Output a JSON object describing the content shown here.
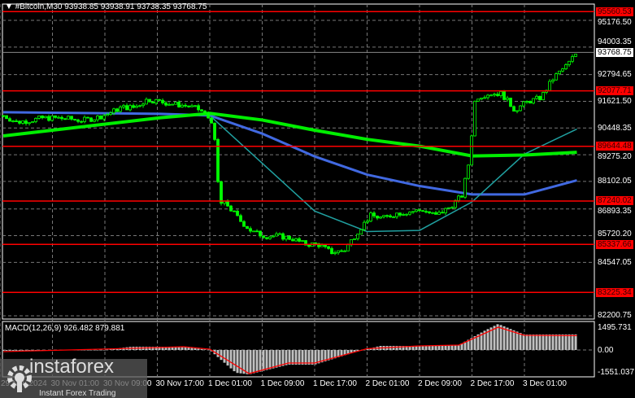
{
  "header": {
    "symbol": "#Bitcoin,M30",
    "ohlc": "93938.85 93938.91 93738.35 93768.75"
  },
  "indicator": {
    "label": "MACD(12,26,9) 926.482 879.881",
    "axis": [
      "1495.731",
      "0.00",
      "-1551.037"
    ]
  },
  "watermark": {
    "brand": "instaforex",
    "tagline": "Instant Forex Trading"
  },
  "colors": {
    "levels": "#ff0000",
    "candle_up": "#00ff00",
    "ma_slow": "#00ee00",
    "ma_mid": "#4169e1",
    "ma_fast": "#20a0a0",
    "macd_hist": "#c0c0c0",
    "macd_signal": "#ff0000"
  },
  "chart_data": {
    "type": "candlestick",
    "timeframe": "M30",
    "price_axis": [
      "95176.50",
      "94003.35",
      "92794.65",
      "91621.50",
      "90448.35",
      "89275.20",
      "88102.05",
      "86893.35",
      "85720.20",
      "84547.05",
      "82200.75"
    ],
    "time_axis": [
      "29 Nov 2024",
      "30 Nov 01:00",
      "30 Nov 09:00",
      "30 Nov 17:00",
      "1 Dec 01:00",
      "1 Dec 09:00",
      "1 Dec 17:00",
      "2 Dec 01:00",
      "2 Dec 09:00",
      "2 Dec 17:00",
      "3 Dec 01:00"
    ],
    "current_price": "93768.75",
    "levels": [
      "95560.53",
      "92077.71",
      "89644.48",
      "87240.02",
      "85337.66",
      "83225.34"
    ],
    "ylim": [
      82200.75,
      95560.53
    ],
    "grid": true,
    "close": [
      [
        "2024-11-29 17:30",
        90994
      ],
      [
        "2024-11-29 19:30",
        90708
      ],
      [
        "2024-11-29 21:30",
        90779
      ],
      [
        "2024-11-29 23:30",
        90886
      ],
      [
        "2024-11-30 01:30",
        90886
      ],
      [
        "2024-11-30 03:30",
        90851
      ],
      [
        "2024-11-30 05:30",
        90779
      ],
      [
        "2024-11-30 07:30",
        90886
      ],
      [
        "2024-11-30 09:30",
        91065
      ],
      [
        "2024-11-30 11:30",
        91351
      ],
      [
        "2024-11-30 13:30",
        91351
      ],
      [
        "2024-11-30 15:30",
        91708
      ],
      [
        "2024-11-30 17:30",
        91601
      ],
      [
        "2024-11-30 19:30",
        91494
      ],
      [
        "2024-11-30 21:30",
        91422
      ],
      [
        "2024-11-30 23:30",
        91244
      ],
      [
        "2024-12-01 01:30",
        90708
      ],
      [
        "2024-12-01 02:30",
        87133
      ],
      [
        "2024-12-01 03:30",
        87133
      ],
      [
        "2024-12-01 05:30",
        86418
      ],
      [
        "2024-12-01 07:30",
        85881
      ],
      [
        "2024-12-01 09:30",
        85703
      ],
      [
        "2024-12-01 11:30",
        85703
      ],
      [
        "2024-12-01 13:30",
        85595
      ],
      [
        "2024-12-01 15:30",
        85345
      ],
      [
        "2024-12-01 17:30",
        85345
      ],
      [
        "2024-12-01 19:30",
        84988
      ],
      [
        "2024-12-01 21:30",
        85059
      ],
      [
        "2024-12-01 23:30",
        85881
      ],
      [
        "2024-12-02 01:30",
        86596
      ],
      [
        "2024-12-02 03:30",
        86489
      ],
      [
        "2024-12-02 05:30",
        86704
      ],
      [
        "2024-12-02 07:30",
        86775
      ],
      [
        "2024-12-02 09:30",
        86847
      ],
      [
        "2024-12-02 11:30",
        86596
      ],
      [
        "2024-12-02 13:30",
        86954
      ],
      [
        "2024-12-02 15:30",
        87490
      ],
      [
        "2024-12-02 16:30",
        88920
      ],
      [
        "2024-12-02 17:30",
        91780
      ],
      [
        "2024-12-02 19:30",
        91959
      ],
      [
        "2024-12-02 21:30",
        91959
      ],
      [
        "2024-12-02 23:30",
        91244
      ],
      [
        "2024-12-03 01:30",
        91601
      ],
      [
        "2024-12-03 03:30",
        91780
      ],
      [
        "2024-12-03 05:30",
        92674
      ],
      [
        "2024-12-03 07:30",
        93210
      ],
      [
        "2024-12-03 09:00",
        93768.75
      ]
    ],
    "ma_slow": [
      [
        "2024-11-29 17:30",
        90100
      ],
      [
        "2024-11-30 17:30",
        90900
      ],
      [
        "2024-12-01 01:00",
        91090
      ],
      [
        "2024-12-01 09:00",
        90800
      ],
      [
        "2024-12-01 17:00",
        90350
      ],
      [
        "2024-12-02 01:00",
        89950
      ],
      [
        "2024-12-02 09:00",
        89650
      ],
      [
        "2024-12-02 17:00",
        89220
      ],
      [
        "2024-12-03 01:00",
        89260
      ],
      [
        "2024-12-03 09:00",
        89380
      ]
    ],
    "ma_mid": [
      [
        "2024-11-29 17:30",
        91140
      ],
      [
        "2024-11-30 17:30",
        91070
      ],
      [
        "2024-12-01 01:00",
        91000
      ],
      [
        "2024-12-01 09:00",
        90200
      ],
      [
        "2024-12-01 17:00",
        89200
      ],
      [
        "2024-12-02 01:00",
        88400
      ],
      [
        "2024-12-02 09:00",
        87900
      ],
      [
        "2024-12-02 17:00",
        87530
      ],
      [
        "2024-12-03 01:00",
        87530
      ],
      [
        "2024-12-03 09:00",
        88150
      ]
    ],
    "ma_fast": [
      [
        "2024-12-01 01:00",
        91000
      ],
      [
        "2024-12-01 09:00",
        88900
      ],
      [
        "2024-12-01 17:00",
        86800
      ],
      [
        "2024-12-02 01:00",
        85900
      ],
      [
        "2024-12-02 09:00",
        85950
      ],
      [
        "2024-12-02 17:00",
        87200
      ],
      [
        "2024-12-03 01:00",
        89300
      ],
      [
        "2024-12-03 09:00",
        90400
      ]
    ],
    "macd_hist": [
      [
        "2024-11-29 17:30",
        -50
      ],
      [
        "2024-11-30 09:00",
        0
      ],
      [
        "2024-11-30 13:00",
        200
      ],
      [
        "2024-11-30 21:00",
        200
      ],
      [
        "2024-12-01 01:00",
        0
      ],
      [
        "2024-12-01 05:00",
        -1400
      ],
      [
        "2024-12-01 07:00",
        -1500
      ],
      [
        "2024-12-01 13:00",
        -900
      ],
      [
        "2024-12-01 17:00",
        -900
      ],
      [
        "2024-12-01 23:00",
        -150
      ],
      [
        "2024-12-02 03:00",
        250
      ],
      [
        "2024-12-02 09:00",
        250
      ],
      [
        "2024-12-02 15:00",
        300
      ],
      [
        "2024-12-02 19:00",
        1200
      ],
      [
        "2024-12-02 21:00",
        1600
      ],
      [
        "2024-12-03 01:00",
        950
      ],
      [
        "2024-12-03 09:00",
        960
      ]
    ],
    "macd_signal": [
      [
        "2024-11-29 17:30",
        -100
      ],
      [
        "2024-11-30 13:00",
        100
      ],
      [
        "2024-11-30 21:00",
        200
      ],
      [
        "2024-12-01 01:00",
        50
      ],
      [
        "2024-12-01 07:00",
        -1450
      ],
      [
        "2024-12-01 13:00",
        -800
      ],
      [
        "2024-12-01 17:00",
        -800
      ],
      [
        "2024-12-02 01:00",
        80
      ],
      [
        "2024-12-02 09:00",
        250
      ],
      [
        "2024-12-02 15:00",
        300
      ],
      [
        "2024-12-02 21:00",
        1400
      ],
      [
        "2024-12-03 01:00",
        900
      ],
      [
        "2024-12-03 09:00",
        880
      ]
    ]
  }
}
